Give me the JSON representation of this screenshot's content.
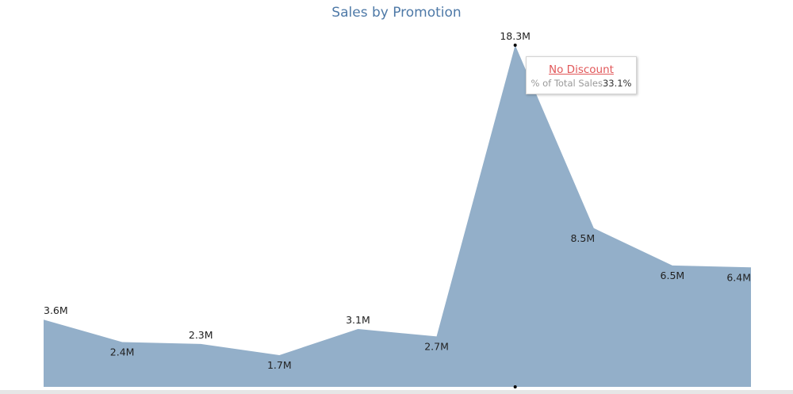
{
  "chart_data": {
    "type": "area",
    "title": "Sales by Promotion",
    "values": [
      3.6,
      2.4,
      2.3,
      1.7,
      3.1,
      2.7,
      18.3,
      8.5,
      6.5,
      6.4
    ],
    "data_labels": [
      "3.6M",
      "2.4M",
      "2.3M",
      "1.7M",
      "3.1M",
      "2.7M",
      "18.3M",
      "8.5M",
      "6.5M",
      "6.4M"
    ],
    "unit": "M",
    "ylim": [
      0,
      18.3
    ],
    "grid": false,
    "fill_color": "#93afc9",
    "title_color": "#4e79a7"
  },
  "tooltip": {
    "title": "No Discount",
    "label": "% of Total Sales",
    "value": "33.1%",
    "title_color": "#e15759"
  }
}
